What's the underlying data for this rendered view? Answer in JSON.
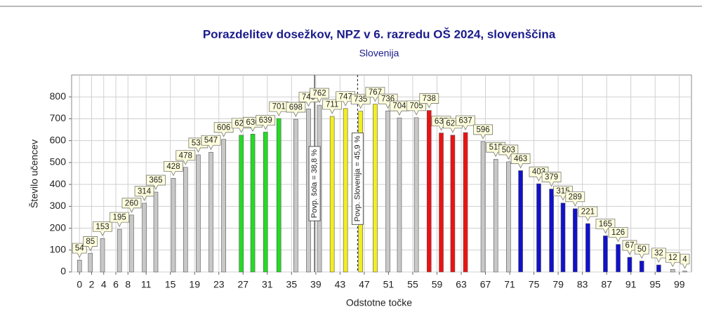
{
  "chart_data": {
    "type": "bar",
    "title": "Porazdelitev dosežkov, NPZ v 6. razredu OŠ 2024, slovenščina",
    "subtitle": "Slovenija",
    "x_label": "Odstotne točke",
    "y_label": "Število učencev",
    "x": [
      0,
      1.8,
      3.8,
      6.6,
      8.6,
      10.7,
      12.6,
      15.5,
      17.5,
      19.6,
      21.7,
      23.8,
      26.7,
      28.6,
      30.7,
      32.9,
      35.7,
      37.8,
      39.6,
      41.7,
      43.9,
      46.4,
      48.8,
      50.9,
      52.8,
      55.6,
      57.7,
      59.7,
      61.6,
      63.7,
      66.6,
      68.7,
      70.8,
      72.8,
      75.8,
      77.9,
      79.8,
      81.8,
      83.9,
      86.8,
      88.9,
      90.8,
      92.8,
      95.6,
      97.9,
      99.9
    ],
    "values": [
      54,
      85,
      153,
      195,
      260,
      314,
      365,
      428,
      478,
      535,
      547,
      606,
      625,
      630,
      639,
      701,
      698,
      745,
      762,
      711,
      747,
      735,
      767,
      736,
      704,
      705,
      738,
      635,
      625,
      637,
      596,
      515,
      503,
      463,
      403,
      379,
      315,
      289,
      221,
      165,
      126,
      67,
      50,
      32,
      12,
      4
    ],
    "colors": [
      "#c8c8c8",
      "#c8c8c8",
      "#c8c8c8",
      "#c8c8c8",
      "#c8c8c8",
      "#c8c8c8",
      "#c8c8c8",
      "#c8c8c8",
      "#c8c8c8",
      "#c8c8c8",
      "#c8c8c8",
      "#c8c8c8",
      "#22dd22",
      "#22dd22",
      "#22dd22",
      "#22dd22",
      "#c8c8c8",
      "#c8c8c8",
      "#c8c8c8",
      "#f2ee22",
      "#f2ee22",
      "#f2ee22",
      "#f2ee22",
      "#c8c8c8",
      "#c8c8c8",
      "#c8c8c8",
      "#ee1111",
      "#ee1111",
      "#ee1111",
      "#ee1111",
      "#c8c8c8",
      "#c8c8c8",
      "#c8c8c8",
      "#1111cc",
      "#1111cc",
      "#1111cc",
      "#1111cc",
      "#1111cc",
      "#1111cc",
      "#1111cc",
      "#1111cc",
      "#1111cc",
      "#1111cc",
      "#1111cc",
      "#c8c8c8",
      "#c8c8c8"
    ],
    "xlim": [
      -1.3,
      101
    ],
    "ylim": [
      0,
      900
    ],
    "xticks": [
      0,
      2,
      4,
      6,
      8,
      11,
      15,
      19,
      23,
      27,
      31,
      35,
      39,
      43,
      47,
      51,
      55,
      59,
      63,
      67,
      71,
      75,
      79,
      83,
      87,
      91,
      95,
      99
    ],
    "yticks": [
      0,
      100,
      200,
      300,
      400,
      500,
      600,
      700,
      800
    ],
    "grid": true,
    "reference_lines": [
      {
        "x": 38.8,
        "label": "Povp. šola = 38,8 %",
        "style": "solid"
      },
      {
        "x": 45.9,
        "label": "Povp. Slovenija = 45,9 %",
        "style": "dashed"
      }
    ]
  }
}
